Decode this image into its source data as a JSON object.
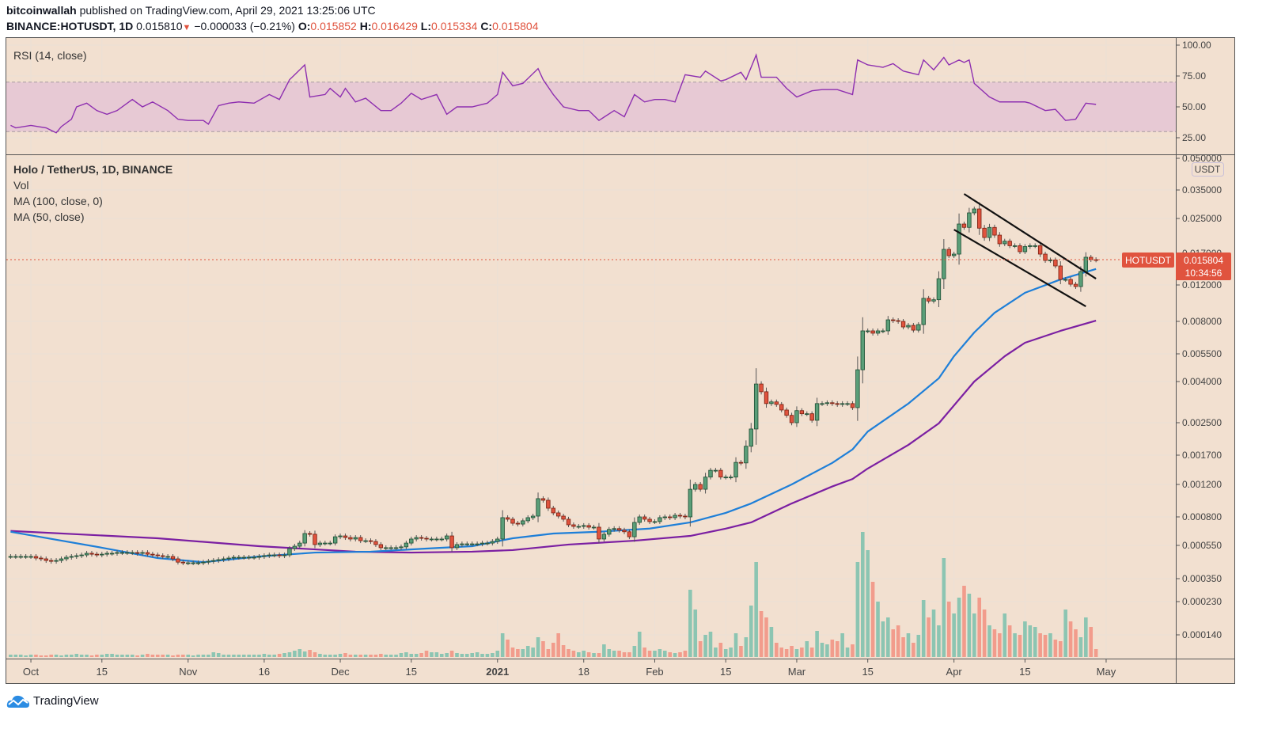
{
  "header": {
    "author": "bitcoinwallah",
    "published_text": "published on TradingView.com, April 29, 2021 13:25:06 UTC",
    "symbol": "BINANCE:HOTUSDT, 1D",
    "last_price": "0.015810",
    "change": "−0.000033 (−0.21%)",
    "o_label": "O:",
    "o_value": "0.015852",
    "h_label": "H:",
    "h_value": "0.016429",
    "l_label": "L:",
    "l_value": "0.015334",
    "c_label": "C:",
    "c_value": "0.015804"
  },
  "rsi_pane": {
    "label": "RSI (14, close)",
    "ticks": [
      "100.00",
      "75.00",
      "50.00",
      "25.00"
    ],
    "band": [
      30,
      70
    ],
    "line_color": "#8e2fb0"
  },
  "main_pane": {
    "legend": [
      "Holo / TetherUS, 1D, BINANCE",
      "Vol",
      "MA (100, close, 0)",
      "MA (50, close)"
    ],
    "currency_badge": "USDT",
    "symbol_tag": "HOTUSDT",
    "price_tag": "0.015804",
    "countdown": "10:34:56",
    "price_ticks": [
      "0.050000",
      "0.035000",
      "0.025000",
      "0.017000",
      "0.012000",
      "0.008000",
      "0.005500",
      "0.004000",
      "0.002500",
      "0.001700",
      "0.001200",
      "0.000800",
      "0.000550",
      "0.000350",
      "0.000230",
      "0.000140"
    ]
  },
  "time_axis": [
    {
      "label": "Oct",
      "date": "2020-10-01"
    },
    {
      "label": "15",
      "date": "2020-10-15"
    },
    {
      "label": "Nov",
      "date": "2020-11-01"
    },
    {
      "label": "16",
      "date": "2020-11-16"
    },
    {
      "label": "Dec",
      "date": "2020-12-01"
    },
    {
      "label": "15",
      "date": "2020-12-15"
    },
    {
      "label": "2021",
      "date": "2021-01-01",
      "bold": true
    },
    {
      "label": "18",
      "date": "2021-01-18"
    },
    {
      "label": "Feb",
      "date": "2021-02-01"
    },
    {
      "label": "15",
      "date": "2021-02-15"
    },
    {
      "label": "Mar",
      "date": "2021-03-01"
    },
    {
      "label": "15",
      "date": "2021-03-15"
    },
    {
      "label": "Apr",
      "date": "2021-04-01"
    },
    {
      "label": "15",
      "date": "2021-04-15"
    },
    {
      "label": "May",
      "date": "2021-05-01"
    }
  ],
  "footer": {
    "brand": "TradingView"
  },
  "colors": {
    "background": "#f2e0d0",
    "up": "#5a9e78",
    "down": "#e0533e",
    "vol_up": "#8cc5b2",
    "vol_down": "#f29c8c",
    "ma50": "#1e7fd8",
    "ma100": "#7b1fa2",
    "trendline": "#111111",
    "rsi_band": "#e7c9d4"
  },
  "chart_data": {
    "type": "candlestick",
    "interval": "1D",
    "date_range": [
      "2020-09-27",
      "2021-04-29"
    ],
    "y_scale": "log",
    "grid": true,
    "close": [
      0.000473,
      0.000473,
      0.000473,
      0.000473,
      0.000473,
      0.000463,
      0.000458,
      0.000448,
      0.000443,
      0.000448,
      0.000458,
      0.000468,
      0.000473,
      0.000478,
      0.000483,
      0.000494,
      0.000488,
      0.000483,
      0.000488,
      0.000494,
      0.000494,
      0.000499,
      0.000499,
      0.000499,
      0.000499,
      0.000494,
      0.000499,
      0.000488,
      0.000483,
      0.000478,
      0.000473,
      0.000473,
      0.000458,
      0.000438,
      0.000434,
      0.000434,
      0.000434,
      0.000434,
      0.000438,
      0.000443,
      0.000448,
      0.000453,
      0.000458,
      0.000463,
      0.000468,
      0.000468,
      0.000468,
      0.000468,
      0.000468,
      0.000473,
      0.000478,
      0.000483,
      0.000483,
      0.000478,
      0.000483,
      0.000527,
      0.000544,
      0.000567,
      0.000643,
      0.000637,
      0.000556,
      0.000567,
      0.000567,
      0.000567,
      0.000616,
      0.000623,
      0.00061,
      0.000598,
      0.00061,
      0.000585,
      0.000585,
      0.000579,
      0.000556,
      0.000533,
      0.000533,
      0.000533,
      0.000533,
      0.000539,
      0.000567,
      0.000598,
      0.00061,
      0.000604,
      0.000598,
      0.000598,
      0.000598,
      0.000598,
      0.000623,
      0.000533,
      0.000556,
      0.000561,
      0.000561,
      0.000561,
      0.000561,
      0.000567,
      0.000567,
      0.000579,
      0.000598,
      0.000792,
      0.000776,
      0.000736,
      0.000728,
      0.00076,
      0.000792,
      0.000808,
      0.001005,
      0.000985,
      0.000892,
      0.000841,
      0.000808,
      0.000776,
      0.000721,
      0.000706,
      0.000706,
      0.000714,
      0.000699,
      0.000699,
      0.000598,
      0.000637,
      0.000679,
      0.000686,
      0.000672,
      0.000658,
      0.000616,
      0.000744,
      0.0008,
      0.000776,
      0.000752,
      0.000752,
      0.000792,
      0.0008,
      0.000792,
      0.000816,
      0.000808,
      0.0008,
      0.00113,
      0.0012,
      0.00113,
      0.00131,
      0.00142,
      0.00142,
      0.00131,
      0.00131,
      0.00131,
      0.00156,
      0.00155,
      0.00189,
      0.00232,
      0.00389,
      0.00356,
      0.00311,
      0.00317,
      0.00308,
      0.00289,
      0.00272,
      0.0025,
      0.00287,
      0.00277,
      0.00277,
      0.00257,
      0.00311,
      0.00311,
      0.00314,
      0.00311,
      0.00308,
      0.00311,
      0.00311,
      0.00297,
      0.00458,
      0.00717,
      0.00717,
      0.00698,
      0.00717,
      0.00717,
      0.00814,
      0.00807,
      0.008,
      0.0075,
      0.00764,
      0.00723,
      0.00771,
      0.01034,
      0.01003,
      0.01018,
      0.01286,
      0.01776,
      0.01656,
      0.01685,
      0.02351,
      0.02265,
      0.0267,
      0.02797,
      0.02245,
      0.02025,
      0.02265,
      0.02079,
      0.01889,
      0.01945,
      0.01849,
      0.01849,
      0.0173,
      0.01832,
      0.01849,
      0.01849,
      0.01685,
      0.01572,
      0.0158,
      0.01479,
      0.01275,
      0.01275,
      0.0121,
      0.01179,
      0.01391,
      0.01628,
      0.015852,
      0.015804
    ],
    "volume_relative": [
      3,
      3,
      3,
      2,
      3,
      3,
      2,
      2,
      3,
      3,
      2,
      3,
      3,
      4,
      3,
      3,
      2,
      3,
      3,
      4,
      4,
      3,
      3,
      3,
      3,
      2,
      3,
      4,
      3,
      3,
      3,
      3,
      2,
      3,
      3,
      3,
      2,
      3,
      3,
      3,
      6,
      5,
      3,
      3,
      3,
      3,
      3,
      3,
      3,
      3,
      4,
      3,
      3,
      4,
      5,
      6,
      8,
      10,
      7,
      9,
      6,
      4,
      3,
      3,
      3,
      4,
      5,
      3,
      3,
      3,
      3,
      3,
      3,
      4,
      3,
      3,
      3,
      5,
      6,
      4,
      4,
      5,
      8,
      6,
      6,
      4,
      5,
      8,
      5,
      4,
      4,
      5,
      6,
      4,
      4,
      5,
      8,
      30,
      22,
      12,
      10,
      10,
      14,
      12,
      25,
      20,
      10,
      18,
      30,
      15,
      10,
      8,
      6,
      8,
      6,
      5,
      5,
      16,
      10,
      8,
      8,
      6,
      6,
      14,
      32,
      12,
      8,
      8,
      10,
      8,
      6,
      5,
      6,
      8,
      85,
      60,
      20,
      28,
      32,
      12,
      18,
      10,
      12,
      30,
      14,
      25,
      65,
      120,
      58,
      50,
      38,
      18,
      12,
      10,
      14,
      10,
      12,
      20,
      12,
      33,
      18,
      16,
      22,
      20,
      30,
      12,
      16,
      120,
      158,
      135,
      95,
      70,
      45,
      50,
      35,
      40,
      25,
      30,
      18,
      28,
      72,
      50,
      60,
      40,
      125,
      70,
      55,
      75,
      90,
      80,
      55,
      75,
      60,
      40,
      35,
      30,
      55,
      40,
      30,
      28,
      45,
      40,
      38,
      30,
      28,
      30,
      22,
      20,
      60,
      45,
      35,
      25,
      50,
      38,
      10
    ],
    "ma50": [
      [
        "2020-09-27",
        0.000658
      ],
      [
        "2020-10-15",
        0.000533
      ],
      [
        "2020-10-26",
        0.000463
      ],
      [
        "2020-11-04",
        0.000438
      ],
      [
        "2020-11-15",
        0.000473
      ],
      [
        "2020-11-26",
        0.000499
      ],
      [
        "2020-12-07",
        0.000505
      ],
      [
        "2020-12-18",
        0.000527
      ],
      [
        "2020-12-27",
        0.000544
      ],
      [
        "2021-01-04",
        0.000604
      ],
      [
        "2021-01-12",
        0.000643
      ],
      [
        "2021-01-21",
        0.000658
      ],
      [
        "2021-01-31",
        0.000686
      ],
      [
        "2021-02-08",
        0.000744
      ],
      [
        "2021-02-15",
        0.000841
      ],
      [
        "2021-02-20",
        0.000946
      ],
      [
        "2021-02-28",
        0.0012
      ],
      [
        "2021-03-08",
        0.00155
      ],
      [
        "2021-03-12",
        0.00182
      ],
      [
        "2021-03-15",
        0.00225
      ],
      [
        "2021-03-23",
        0.00311
      ],
      [
        "2021-03-29",
        0.00415
      ],
      [
        "2021-04-01",
        0.00535
      ],
      [
        "2021-04-05",
        0.00704
      ],
      [
        "2021-04-09",
        0.0088
      ],
      [
        "2021-04-15",
        0.011
      ],
      [
        "2021-04-22",
        0.01275
      ],
      [
        "2021-04-29",
        0.0143
      ]
    ],
    "ma100": [
      [
        "2020-09-27",
        0.000665
      ],
      [
        "2020-10-26",
        0.000604
      ],
      [
        "2020-11-15",
        0.000544
      ],
      [
        "2020-12-04",
        0.000505
      ],
      [
        "2020-12-15",
        0.000499
      ],
      [
        "2020-12-27",
        0.000505
      ],
      [
        "2021-01-04",
        0.000516
      ],
      [
        "2021-01-15",
        0.000556
      ],
      [
        "2021-01-28",
        0.000585
      ],
      [
        "2021-02-08",
        0.000623
      ],
      [
        "2021-02-15",
        0.000686
      ],
      [
        "2021-02-20",
        0.000744
      ],
      [
        "2021-02-28",
        0.000946
      ],
      [
        "2021-03-08",
        0.00117
      ],
      [
        "2021-03-12",
        0.00128
      ],
      [
        "2021-03-15",
        0.00145
      ],
      [
        "2021-03-23",
        0.00192
      ],
      [
        "2021-03-29",
        0.00248
      ],
      [
        "2021-04-05",
        0.004
      ],
      [
        "2021-04-11",
        0.00535
      ],
      [
        "2021-04-15",
        0.00625
      ],
      [
        "2021-04-22",
        0.00717
      ],
      [
        "2021-04-29",
        0.00807
      ]
    ],
    "trendlines": [
      [
        [
          "2021-04-03",
          0.0334
        ],
        [
          "2021-04-29",
          0.01286
        ]
      ],
      [
        [
          "2021-04-01",
          0.0221
        ],
        [
          "2021-04-27",
          0.00945
        ]
      ]
    ],
    "rsi": [
      [
        "2020-09-27",
        35
      ],
      [
        "2020-09-28",
        33
      ],
      [
        "2020-10-01",
        35
      ],
      [
        "2020-10-04",
        33
      ],
      [
        "2020-10-06",
        29
      ],
      [
        "2020-10-07",
        34
      ],
      [
        "2020-10-09",
        40
      ],
      [
        "2020-10-10",
        50
      ],
      [
        "2020-10-12",
        53
      ],
      [
        "2020-10-14",
        47
      ],
      [
        "2020-10-16",
        44
      ],
      [
        "2020-10-18",
        47
      ],
      [
        "2020-10-21",
        56
      ],
      [
        "2020-10-23",
        50
      ],
      [
        "2020-10-25",
        54
      ],
      [
        "2020-10-28",
        47
      ],
      [
        "2020-10-30",
        40
      ],
      [
        "2020-11-01",
        39
      ],
      [
        "2020-11-04",
        39
      ],
      [
        "2020-11-05",
        36
      ],
      [
        "2020-11-07",
        51
      ],
      [
        "2020-11-09",
        53
      ],
      [
        "2020-11-11",
        54
      ],
      [
        "2020-11-14",
        53
      ],
      [
        "2020-11-17",
        60
      ],
      [
        "2020-11-19",
        56
      ],
      [
        "2020-11-21",
        72
      ],
      [
        "2020-11-22",
        76
      ],
      [
        "2020-11-24",
        84
      ],
      [
        "2020-11-25",
        58
      ],
      [
        "2020-11-28",
        60
      ],
      [
        "2020-11-29",
        65
      ],
      [
        "2020-12-01",
        58
      ],
      [
        "2020-12-02",
        65
      ],
      [
        "2020-12-04",
        54
      ],
      [
        "2020-12-06",
        57
      ],
      [
        "2020-12-09",
        47
      ],
      [
        "2020-12-11",
        47
      ],
      [
        "2020-12-13",
        53
      ],
      [
        "2020-12-15",
        61
      ],
      [
        "2020-12-17",
        56
      ],
      [
        "2020-12-20",
        60
      ],
      [
        "2020-12-22",
        44
      ],
      [
        "2020-12-24",
        50
      ],
      [
        "2020-12-27",
        50
      ],
      [
        "2020-12-30",
        53
      ],
      [
        "2021-01-01",
        60
      ],
      [
        "2021-01-02",
        78
      ],
      [
        "2021-01-04",
        67
      ],
      [
        "2021-01-06",
        69
      ],
      [
        "2021-01-09",
        81
      ],
      [
        "2021-01-10",
        72
      ],
      [
        "2021-01-12",
        60
      ],
      [
        "2021-01-14",
        50
      ],
      [
        "2021-01-17",
        47
      ],
      [
        "2021-01-19",
        47
      ],
      [
        "2021-01-21",
        39
      ],
      [
        "2021-01-24",
        47
      ],
      [
        "2021-01-26",
        42
      ],
      [
        "2021-01-28",
        60
      ],
      [
        "2021-01-30",
        54
      ],
      [
        "2021-02-01",
        56
      ],
      [
        "2021-02-03",
        56
      ],
      [
        "2021-02-05",
        54
      ],
      [
        "2021-02-07",
        76
      ],
      [
        "2021-02-10",
        74
      ],
      [
        "2021-02-11",
        79
      ],
      [
        "2021-02-14",
        71
      ],
      [
        "2021-02-15",
        72
      ],
      [
        "2021-02-18",
        78
      ],
      [
        "2021-02-19",
        72
      ],
      [
        "2021-02-21",
        92
      ],
      [
        "2021-02-22",
        74
      ],
      [
        "2021-02-25",
        74
      ],
      [
        "2021-02-27",
        65
      ],
      [
        "2021-03-01",
        58
      ],
      [
        "2021-03-04",
        63
      ],
      [
        "2021-03-06",
        64
      ],
      [
        "2021-03-09",
        64
      ],
      [
        "2021-03-12",
        60
      ],
      [
        "2021-03-13",
        88
      ],
      [
        "2021-03-15",
        84
      ],
      [
        "2021-03-18",
        82
      ],
      [
        "2021-03-20",
        85
      ],
      [
        "2021-03-22",
        79
      ],
      [
        "2021-03-25",
        76
      ],
      [
        "2021-03-26",
        88
      ],
      [
        "2021-03-28",
        80
      ],
      [
        "2021-03-30",
        90
      ],
      [
        "2021-03-31",
        84
      ],
      [
        "2021-04-02",
        88
      ],
      [
        "2021-04-03",
        86
      ],
      [
        "2021-04-04",
        88
      ],
      [
        "2021-04-05",
        69
      ],
      [
        "2021-04-08",
        58
      ],
      [
        "2021-04-10",
        54
      ],
      [
        "2021-04-13",
        54
      ],
      [
        "2021-04-15",
        54
      ],
      [
        "2021-04-16",
        53
      ],
      [
        "2021-04-19",
        47
      ],
      [
        "2021-04-21",
        48
      ],
      [
        "2021-04-23",
        39
      ],
      [
        "2021-04-25",
        40
      ],
      [
        "2021-04-27",
        53
      ],
      [
        "2021-04-29",
        52
      ]
    ]
  }
}
